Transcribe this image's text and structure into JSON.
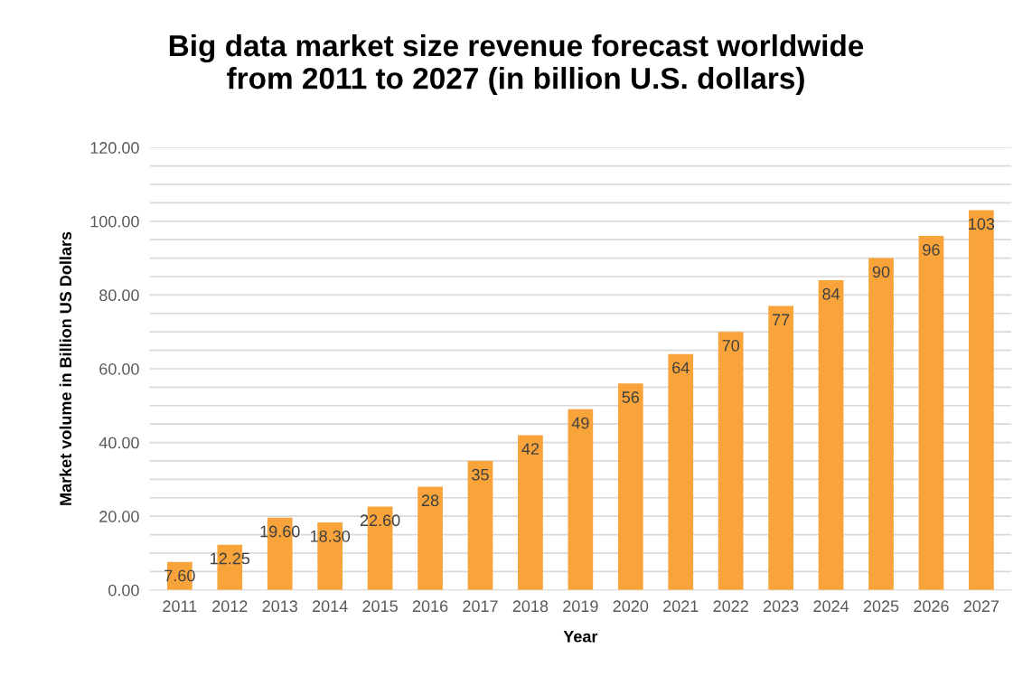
{
  "chart_data": {
    "type": "bar",
    "title": "Big data market size revenue forecast worldwide\nfrom 2011 to 2027 (in billion U.S. dollars)",
    "xlabel": "Year",
    "ylabel": "Market volume in Billion US Dollars",
    "categories": [
      "2011",
      "2012",
      "2013",
      "2014",
      "2015",
      "2016",
      "2017",
      "2018",
      "2019",
      "2020",
      "2021",
      "2022",
      "2023",
      "2024",
      "2025",
      "2026",
      "2027"
    ],
    "values": [
      7.6,
      12.25,
      19.6,
      18.3,
      22.6,
      28,
      35,
      42,
      49,
      56,
      64,
      70,
      77,
      84,
      90,
      96,
      103
    ],
    "value_labels": [
      "7.60",
      "12.25",
      "19.60",
      "18.30",
      "22.60",
      "28",
      "35",
      "42",
      "49",
      "56",
      "64",
      "70",
      "77",
      "84",
      "90",
      "96",
      "103"
    ],
    "color": "#f9a43a",
    "ylim": [
      0,
      120
    ],
    "yticks": [
      {
        "value": 0,
        "label": "0.00"
      },
      {
        "value": 5,
        "label": null
      },
      {
        "value": 10,
        "label": null
      },
      {
        "value": 15,
        "label": null
      },
      {
        "value": 20,
        "label": "20.00"
      },
      {
        "value": 25,
        "label": null
      },
      {
        "value": 30,
        "label": null
      },
      {
        "value": 35,
        "label": null
      },
      {
        "value": 40,
        "label": "40.00"
      },
      {
        "value": 45,
        "label": null
      },
      {
        "value": 50,
        "label": null
      },
      {
        "value": 55,
        "label": null
      },
      {
        "value": 60,
        "label": "60.00"
      },
      {
        "value": 65,
        "label": null
      },
      {
        "value": 70,
        "label": null
      },
      {
        "value": 75,
        "label": null
      },
      {
        "value": 80,
        "label": "80.00"
      },
      {
        "value": 85,
        "label": null
      },
      {
        "value": 90,
        "label": null
      },
      {
        "value": 95,
        "label": null
      },
      {
        "value": 100,
        "label": "100.00"
      },
      {
        "value": 105,
        "label": null
      },
      {
        "value": 110,
        "label": null
      },
      {
        "value": 115,
        "label": null
      },
      {
        "value": 120,
        "label": "120.00"
      }
    ],
    "grid": "y",
    "legend": false
  }
}
